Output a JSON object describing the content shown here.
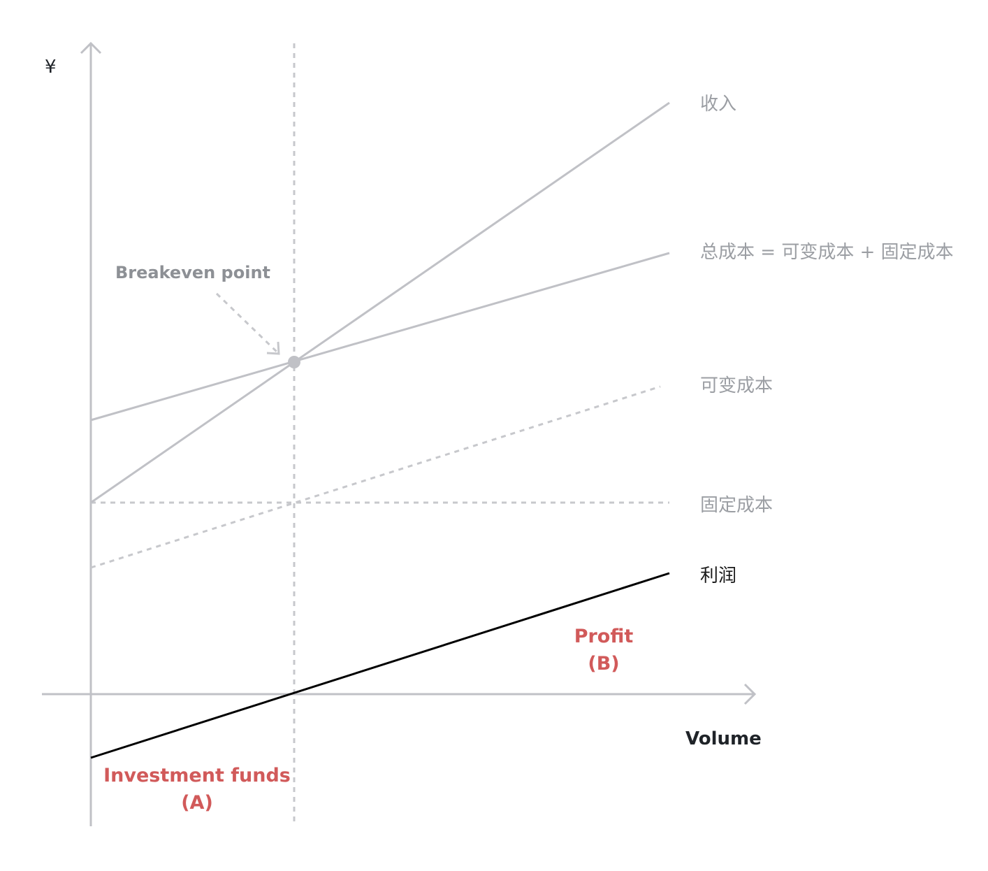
{
  "diagram": {
    "y_axis_label": "¥",
    "x_axis_label": "Volume",
    "callout": "Breakeven point",
    "series_labels": {
      "revenue": "收入",
      "total_cost": "总成本 = 可变成本 + 固定成本",
      "variable_cost": "可变成本",
      "fixed_cost": "固定成本",
      "profit": "利润"
    },
    "regions": {
      "investment": {
        "line1": "Investment funds",
        "line2": "(A)"
      },
      "profit": {
        "line1": "Profit",
        "line2": "(B)"
      }
    },
    "colors": {
      "light_line": "#c0c1c6",
      "dashed_line": "#c7c8cc",
      "profit_line": "#000000",
      "accent": "#d15a5a",
      "axis": "#c0c1c6"
    }
  }
}
